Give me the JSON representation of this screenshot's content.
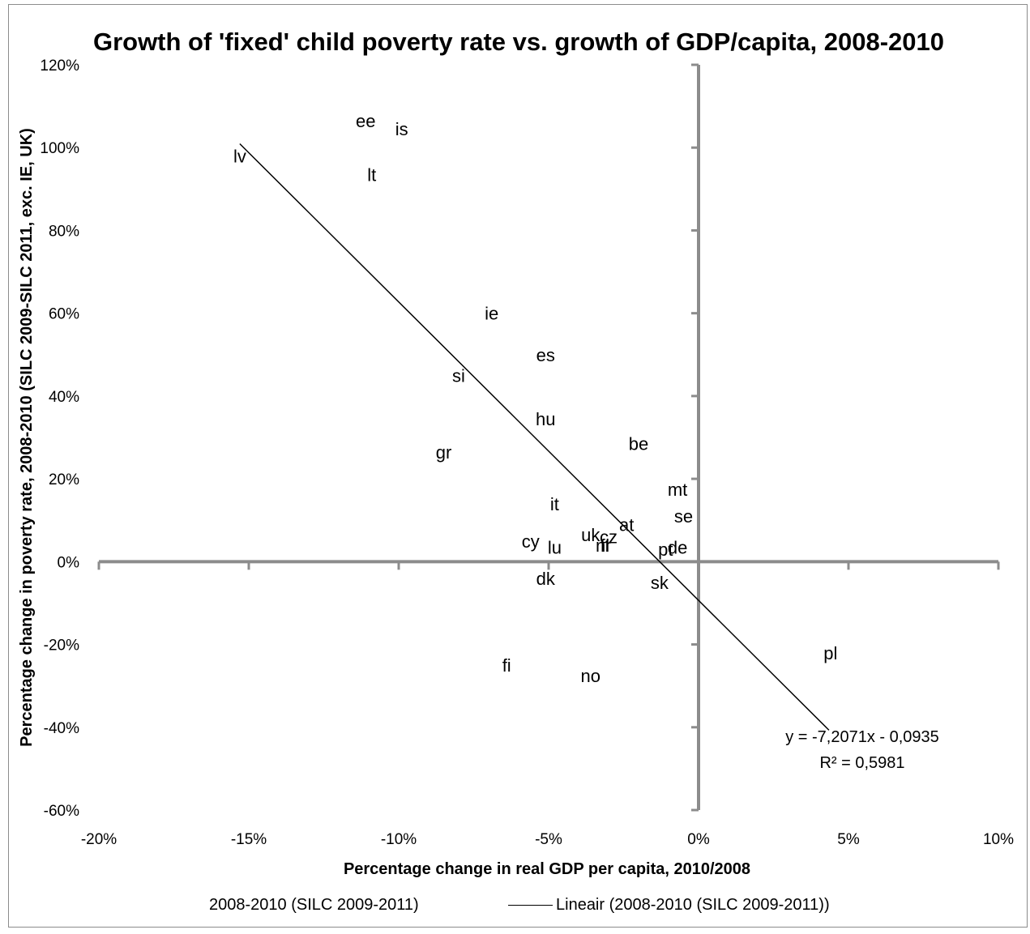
{
  "chart_data": {
    "type": "scatter",
    "title": "Growth of 'fixed' child poverty rate vs. growth of GDP/capita, 2008-2010",
    "xlabel": "Percentage change in real GDP per capita, 2010/2008",
    "ylabel": "Percentage change in poverty rate, 2008-2010 (SILC 2009-SILC 2011, exc. IE, UK)",
    "xlim": [
      -0.2,
      0.1
    ],
    "ylim": [
      -0.6,
      1.2
    ],
    "x_ticks": [
      -0.2,
      -0.15,
      -0.1,
      -0.05,
      0.0,
      0.05,
      0.1
    ],
    "x_tick_labels": [
      "-20%",
      "-15%",
      "-10%",
      "-5%",
      "0%",
      "5%",
      "10%"
    ],
    "y_ticks": [
      -0.6,
      -0.4,
      -0.2,
      0.0,
      0.2,
      0.4,
      0.6,
      0.8,
      1.0,
      1.2
    ],
    "y_tick_labels": [
      "-60%",
      "-40%",
      "-20%",
      "0%",
      "20%",
      "40%",
      "60%",
      "80%",
      "100%",
      "120%"
    ],
    "grid": false,
    "legend_position": "bottom",
    "series": [
      {
        "name": "2008-2010 (SILC 2009-2011)",
        "points": [
          {
            "label": "ee",
            "x": -0.111,
            "y": 1.065
          },
          {
            "label": "is",
            "x": -0.099,
            "y": 1.045
          },
          {
            "label": "lv",
            "x": -0.153,
            "y": 0.98
          },
          {
            "label": "lt",
            "x": -0.109,
            "y": 0.935
          },
          {
            "label": "ie",
            "x": -0.069,
            "y": 0.6
          },
          {
            "label": "es",
            "x": -0.051,
            "y": 0.5
          },
          {
            "label": "si",
            "x": -0.08,
            "y": 0.45
          },
          {
            "label": "hu",
            "x": -0.051,
            "y": 0.345
          },
          {
            "label": "be",
            "x": -0.02,
            "y": 0.285
          },
          {
            "label": "gr",
            "x": -0.085,
            "y": 0.265
          },
          {
            "label": "mt",
            "x": -0.007,
            "y": 0.175
          },
          {
            "label": "it",
            "x": -0.048,
            "y": 0.14
          },
          {
            "label": "se",
            "x": -0.005,
            "y": 0.11
          },
          {
            "label": "at",
            "x": -0.024,
            "y": 0.09
          },
          {
            "label": "uk",
            "x": -0.036,
            "y": 0.065
          },
          {
            "label": "cz",
            "x": -0.03,
            "y": 0.06
          },
          {
            "label": "cy",
            "x": -0.056,
            "y": 0.05
          },
          {
            "label": "nl",
            "x": -0.032,
            "y": 0.04
          },
          {
            "label": "fr",
            "x": -0.031,
            "y": 0.04
          },
          {
            "label": "lu",
            "x": -0.048,
            "y": 0.035
          },
          {
            "label": "de",
            "x": -0.007,
            "y": 0.035
          },
          {
            "label": "pt",
            "x": -0.011,
            "y": 0.03
          },
          {
            "label": "dk",
            "x": -0.051,
            "y": -0.04
          },
          {
            "label": "sk",
            "x": -0.013,
            "y": -0.05
          },
          {
            "label": "pl",
            "x": 0.044,
            "y": -0.22
          },
          {
            "label": "fi",
            "x": -0.064,
            "y": -0.25
          },
          {
            "label": "no",
            "x": -0.036,
            "y": -0.275
          }
        ]
      },
      {
        "name": "Lineair (2008-2010 (SILC 2009-2011))",
        "type": "trendline",
        "x_range": [
          -0.153,
          0.0435
        ],
        "slope": -7.2071,
        "intercept": -0.0935
      }
    ],
    "annotations": {
      "equation": "y = -7,2071x - 0,0935",
      "r_squared": "R² = 0,5981"
    }
  }
}
